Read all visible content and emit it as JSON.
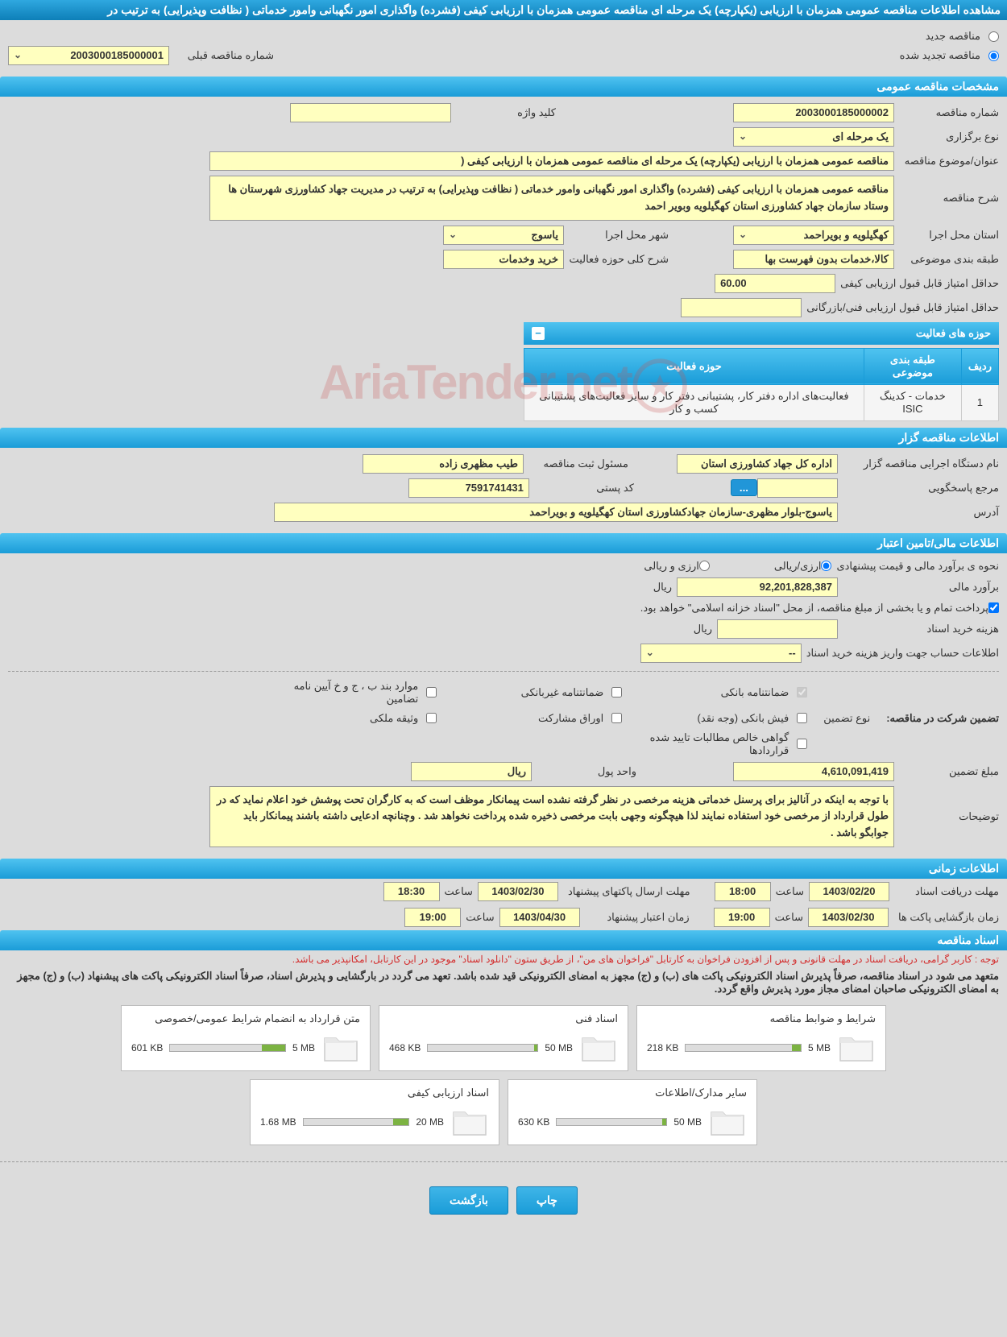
{
  "header": {
    "title": "مشاهده اطلاعات مناقصه عمومی همزمان با ارزیابی (یکپارچه) یک مرحله ای مناقصه عمومی همزمان با ارزیابی کیفی (فشرده) واگذاری امور نگهبانی وامور خدماتی ( نظافت وپذیرایی) به ترتیب در"
  },
  "tender_type": {
    "new_label": "مناقصه جدید",
    "renewed_label": "مناقصه تجدید شده",
    "prev_number_label": "شماره مناقصه قبلی",
    "prev_number": "2003000185000001"
  },
  "sections": {
    "general": "مشخصات مناقصه عمومی",
    "activities": "حوزه های فعالیت",
    "organizer": "اطلاعات مناقصه گزار",
    "financial": "اطلاعات مالی/تامین اعتبار",
    "timing": "اطلاعات زمانی",
    "documents": "اسناد مناقصه"
  },
  "general": {
    "number_label": "شماره مناقصه",
    "number": "2003000185000002",
    "keyword_label": "کلید واژه",
    "keyword": "",
    "type_label": "نوع برگزاری",
    "type": "یک مرحله ای",
    "subject_label": "عنوان/موضوع مناقصه",
    "subject": "مناقصه عمومی همزمان با ارزیابی (یکپارچه) یک مرحله ای مناقصه عمومی همزمان با ارزیابی کیفی (",
    "desc_label": "شرح مناقصه",
    "desc": "مناقصه عمومی همزمان با ارزیابی کیفی (فشرده) واگذاری امور نگهبانی وامور خدماتی ( نظافت وپذیرایی) به ترتیب در مدیریت جهاد کشاورزی شهرستان ها وستاد سازمان جهاد کشاورزی استان کهگیلویه وبویر احمد",
    "province_label": "استان محل اجرا",
    "province": "کهگیلویه و بویراحمد",
    "city_label": "شهر محل اجرا",
    "city": "یاسوج",
    "category_label": "طبقه بندی موضوعی",
    "category": "کالا،خدمات بدون فهرست بها",
    "activity_scope_label": "شرح کلی حوزه فعالیت",
    "activity_scope": "خرید وخدمات",
    "min_quality_score_label": "حداقل امتیاز قابل قبول ارزیابی کیفی",
    "min_quality_score": "60.00",
    "min_tech_score_label": "حداقل امتیاز قابل قبول ارزیابی فنی/بازرگانی",
    "min_tech_score": ""
  },
  "activity_table": {
    "col_row": "ردیف",
    "col_category": "طبقه بندی موضوعی",
    "col_scope": "حوزه فعالیت",
    "row1_num": "1",
    "row1_cat": "خدمات - کدینگ ISIC",
    "row1_scope": "فعالیت‌های  اداره دفتر کار، پشتیبانی دفتر کار و سایر فعالیت‌های پشتیبانی کسب و کار"
  },
  "organizer": {
    "org_label": "نام دستگاه اجرایی مناقصه گزار",
    "org": "اداره کل جهاد کشاورزی استان",
    "contact_label": "مسئول ثبت مناقصه",
    "contact": "طیب مظهری زاده",
    "ref_label": "مرجع پاسخگویی",
    "ref": "",
    "postal_label": "کد پستی",
    "postal": "7591741431",
    "address_label": "آدرس",
    "address": "یاسوج-بلوار مظهری-سازمان جهادکشاورزی استان کهگیلویه و بویراحمد"
  },
  "financial": {
    "estimate_type_label": "نحوه ی برآورد مالی و قیمت پیشنهادی",
    "opt_rial": "ارزی/ریالی",
    "opt_currency": "ارزی و ریالی",
    "estimate_label": "برآورد مالی",
    "estimate": "92,201,828,387",
    "unit_rial": "ریال",
    "payment_note": "پرداخت تمام و یا بخشی از مبلغ مناقصه، از محل \"اسناد خزانه اسلامی\" خواهد بود.",
    "doc_cost_label": "هزینه خرید اسناد",
    "doc_cost": "",
    "account_label": "اطلاعات حساب جهت واریز هزینه خرید اسناد",
    "account": "--",
    "guarantee_title": "تضمین شرکت در مناقصه:",
    "guarantee_type_label": "نوع تضمین",
    "cb_bank": "ضمانتنامه بانکی",
    "cb_nonbank": "ضمانتنامه غیربانکی",
    "cb_cases": "موارد بند ب ، ج و خ آیین نامه تضامین",
    "cb_cash": "فیش بانکی (وجه نقد)",
    "cb_bonds": "اوراق مشارکت",
    "cb_property": "وثیقه ملکی",
    "cb_receivables": "گواهی خالص مطالبات تایید شده قراردادها",
    "amount_label": "مبلغ تضمین",
    "amount": "4,610,091,419",
    "currency_unit_label": "واحد پول",
    "currency_unit": "ریال",
    "notes_label": "توضیحات",
    "notes": "با توجه به اینکه در آنالیز برای پرسنل خدماتی هزینه مرخصی در نظر گرفته نشده است پیمانکار موظف است که به کارگران تحت پوشش خود اعلام نماید که در طول قرارداد از مرخصی خود استفاده نمایند لذا هیچگونه وجهی بابت مرخصی ذخیره شده پرداخت نخواهد شد . وچنانچه ادعایی داشته باشند پیمانکار باید جوابگو باشد ."
  },
  "timing": {
    "doc_receive_label": "مهلت دریافت اسناد",
    "doc_receive_date": "1403/02/20",
    "doc_receive_time_label": "ساعت",
    "doc_receive_time": "18:00",
    "proposal_send_label": "مهلت ارسال پاکتهای پیشنهاد",
    "proposal_send_date": "1403/02/30",
    "proposal_send_time": "18:30",
    "open_label": "زمان بازگشایی پاکت ها",
    "open_date": "1403/02/30",
    "open_time": "19:00",
    "validity_label": "زمان اعتبار پیشنهاد",
    "validity_date": "1403/04/30",
    "validity_time": "19:00"
  },
  "documents": {
    "note1": "توجه : کاربر گرامی، دریافت اسناد در مهلت قانونی و پس از افزودن فراخوان به کارتابل \"فراخوان های من\"، از طریق ستون \"دانلود اسناد\" موجود در این کارتابل، امکانپذیر می باشد.",
    "note2": "متعهد می شود در اسناد مناقصه، صرفاً پذیرش اسناد الکترونیکی پاکت های (ب) و (ج) مجهز به امضای الکترونیکی قید شده باشد. تعهد می گردد در بارگشایی و پذیرش اسناد، صرفاً اسناد الکترونیکی پاکت های پیشنهاد (ب) و (ج) مجهز به امضای الکترونیکی صاحبان امضای مجاز مورد پذیرش واقع گردد.",
    "files": [
      {
        "title": "شرایط و ضوابط مناقصه",
        "limit": "5 MB",
        "size": "218 KB",
        "fill": 8
      },
      {
        "title": "اسناد فنی",
        "limit": "50 MB",
        "size": "468 KB",
        "fill": 3
      },
      {
        "title": "متن قرارداد به انضمام شرایط عمومی/خصوصی",
        "limit": "5 MB",
        "size": "601 KB",
        "fill": 20
      },
      {
        "title": "سایر مدارک/اطلاعات",
        "limit": "50 MB",
        "size": "630 KB",
        "fill": 4
      },
      {
        "title": "اسناد ارزیابی کیفی",
        "limit": "20 MB",
        "size": "1.68 MB",
        "fill": 15
      }
    ]
  },
  "buttons": {
    "print": "چاپ",
    "back": "بازگشت"
  },
  "watermark": "AriaTender.net",
  "colors": {
    "header_bg": "#1a9cd8",
    "input_bg": "#ffffbf",
    "body_bg": "#dcdcdc"
  }
}
